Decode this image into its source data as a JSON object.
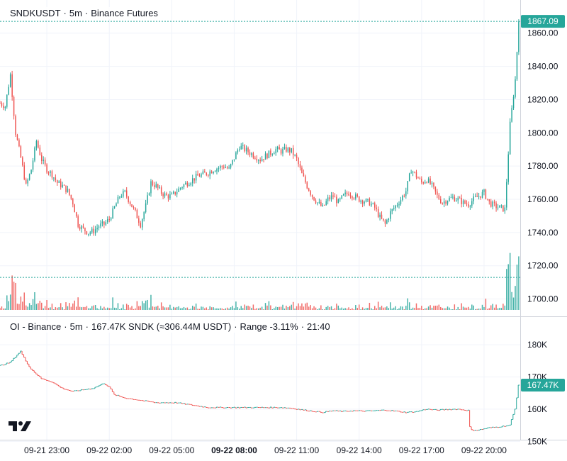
{
  "main_legend": {
    "symbol": "SNDKUSDT",
    "interval": "5m",
    "exchange": "Binance Futures"
  },
  "oi_legend": {
    "name": "OI - Binance",
    "interval": "5m",
    "value_text": "167.47K SNDK (≈306.44M USDT)",
    "range_text": "Range -3.11%",
    "time": "21:40"
  },
  "colors": {
    "up": "#26a69a",
    "down": "#ef5350",
    "last_price_bg": "#26a69a",
    "grid": "#f0f3fa",
    "axis_text": "#131722"
  },
  "logo_icon": "tradingview-logo-icon",
  "chart_data": [
    {
      "type": "candlestick",
      "title": "SNDKUSDT · 5m · Binance Futures",
      "ylim": [
        1693,
        1868
      ],
      "y_ticks": [
        "1700.00",
        "1720.00",
        "1740.00",
        "1760.00",
        "1780.00",
        "1800.00",
        "1820.00",
        "1840.00",
        "1860.00"
      ],
      "y_tick_values": [
        1700,
        1720,
        1740,
        1760,
        1780,
        1800,
        1820,
        1840,
        1860
      ],
      "last_price": 1867.09,
      "last_price_label": "1867.09",
      "volume_level_price": 1713,
      "x_ticks": [
        "09-21 23:00",
        "09-22 02:00",
        "09-22 05:00",
        "09-22 08:00",
        "09-22 11:00",
        "09-22 14:00",
        "09-22 17:00",
        "09-22 20:00"
      ],
      "x_tick_hours": [
        23,
        26,
        29,
        32,
        35,
        38,
        41,
        44
      ],
      "x_tick_bold_index": 3,
      "close_series_hours": [
        20.75,
        21.0,
        21.25,
        21.5,
        21.75,
        22.0,
        22.25,
        22.5,
        22.75,
        23.0,
        23.25,
        23.5,
        23.75,
        24.0,
        24.25,
        24.5,
        24.75,
        25.0,
        25.25,
        25.5,
        25.75,
        26.0,
        26.25,
        26.5,
        26.75,
        27.0,
        27.25,
        27.5,
        27.75,
        28.0,
        28.25,
        28.5,
        28.75,
        29.0,
        29.25,
        29.5,
        29.75,
        30.0,
        30.25,
        30.5,
        30.75,
        31.0,
        31.25,
        31.5,
        31.75,
        32.0,
        32.25,
        32.5,
        32.75,
        33.0,
        33.25,
        33.5,
        33.75,
        34.0,
        34.25,
        34.5,
        34.75,
        35.0,
        35.25,
        35.5,
        35.75,
        36.0,
        36.25,
        36.5,
        36.75,
        37.0,
        37.25,
        37.5,
        37.75,
        38.0,
        38.25,
        38.5,
        38.75,
        39.0,
        39.25,
        39.5,
        39.75,
        40.0,
        40.25,
        40.5,
        40.75,
        41.0,
        41.25,
        41.5,
        41.75,
        42.0,
        42.25,
        42.5,
        42.75,
        43.0,
        43.25,
        43.5,
        43.75,
        44.0,
        44.25,
        44.5,
        44.75,
        45.0,
        45.25,
        45.5,
        45.67
      ],
      "close_series_prices": [
        1818,
        1816,
        1835,
        1800,
        1785,
        1768,
        1778,
        1795,
        1784,
        1778,
        1775,
        1770,
        1768,
        1765,
        1758,
        1745,
        1742,
        1740,
        1741,
        1744,
        1745,
        1748,
        1755,
        1762,
        1764,
        1758,
        1752,
        1745,
        1756,
        1770,
        1768,
        1764,
        1762,
        1762,
        1765,
        1768,
        1770,
        1772,
        1774,
        1775,
        1776,
        1778,
        1779,
        1780,
        1778,
        1785,
        1792,
        1790,
        1788,
        1786,
        1784,
        1786,
        1788,
        1790,
        1789,
        1790,
        1789,
        1784,
        1775,
        1768,
        1762,
        1758,
        1755,
        1760,
        1762,
        1758,
        1762,
        1764,
        1762,
        1760,
        1759,
        1758,
        1755,
        1749,
        1745,
        1752,
        1756,
        1760,
        1765,
        1778,
        1774,
        1770,
        1772,
        1768,
        1762,
        1758,
        1760,
        1761,
        1760,
        1758,
        1757,
        1760,
        1762,
        1764,
        1758,
        1756,
        1755,
        1754,
        1805,
        1832,
        1867.09
      ]
    },
    {
      "type": "step-line",
      "title": "OI - Binance · 5m · 167.47K SNDK (≈306.44M USDT) · Range -3.11% · 21:40",
      "ylim": [
        150.5,
        184
      ],
      "y_ticks": [
        "150K",
        "160K",
        "170K",
        "180K"
      ],
      "y_tick_values": [
        150,
        160,
        170,
        180
      ],
      "last_value": 167.47,
      "last_value_label": "167.47K",
      "series_hours": [
        20.75,
        21.25,
        21.75,
        22.0,
        22.25,
        22.75,
        23.25,
        23.75,
        24.25,
        24.75,
        25.25,
        25.75,
        26.0,
        26.25,
        26.75,
        27.25,
        27.75,
        28.25,
        28.75,
        29.25,
        29.75,
        30.25,
        30.75,
        31.25,
        31.75,
        32.25,
        32.75,
        33.25,
        33.75,
        34.25,
        34.75,
        35.25,
        35.75,
        36.25,
        36.75,
        37.25,
        37.75,
        38.25,
        38.75,
        39.25,
        39.75,
        40.25,
        40.75,
        41.25,
        41.75,
        42.25,
        42.75,
        43.25,
        43.35,
        43.75,
        44.25,
        44.75,
        45.25,
        45.5,
        45.67
      ],
      "series_values": [
        173.5,
        174.5,
        178.0,
        175.0,
        172.5,
        169.5,
        168.5,
        166.5,
        165.5,
        166.0,
        166.5,
        168.0,
        167.0,
        164.5,
        163.5,
        163.0,
        162.5,
        162.0,
        162.0,
        162.0,
        161.5,
        161.0,
        160.5,
        160.5,
        160.5,
        160.5,
        160.5,
        160.5,
        160.5,
        160.5,
        160.3,
        159.8,
        159.4,
        159.0,
        159.5,
        159.3,
        159.5,
        159.4,
        159.5,
        159.7,
        159.4,
        159.0,
        159.2,
        160.0,
        159.7,
        159.9,
        160.0,
        159.6,
        153.5,
        153.5,
        154.2,
        154.5,
        155.0,
        160.0,
        167.47
      ]
    }
  ]
}
